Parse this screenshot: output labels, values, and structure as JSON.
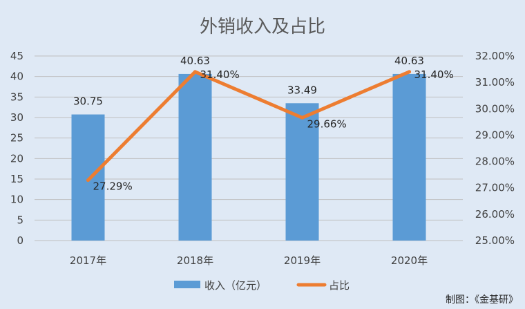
{
  "chart_data": {
    "type": "bar",
    "title": "外销收入及占比",
    "categories": [
      "2017年",
      "2018年",
      "2019年",
      "2020年"
    ],
    "series": [
      {
        "name": "收入（亿元）",
        "type": "bar",
        "axis": "left",
        "color": "#5b9bd5",
        "values": [
          30.75,
          40.63,
          33.49,
          40.63
        ],
        "labels": [
          "30.75",
          "40.63",
          "33.49",
          "40.63"
        ]
      },
      {
        "name": "占比",
        "type": "line",
        "axis": "right",
        "color": "#ed7d31",
        "values": [
          27.29,
          31.4,
          29.66,
          31.4
        ],
        "labels": [
          "27.29%",
          "31.40%",
          "29.66%",
          "31.40%"
        ]
      }
    ],
    "y_left": {
      "min": 0,
      "max": 45,
      "step": 5,
      "ticks": [
        "0",
        "5",
        "10",
        "15",
        "20",
        "25",
        "30",
        "35",
        "40",
        "45"
      ]
    },
    "y_right": {
      "min": 25,
      "max": 32,
      "step": 1,
      "ticks": [
        "25.00%",
        "26.00%",
        "27.00%",
        "28.00%",
        "29.00%",
        "30.00%",
        "31.00%",
        "32.00%"
      ]
    },
    "grid": true,
    "legend": "bottom"
  },
  "credit": "制图：《金基研》"
}
